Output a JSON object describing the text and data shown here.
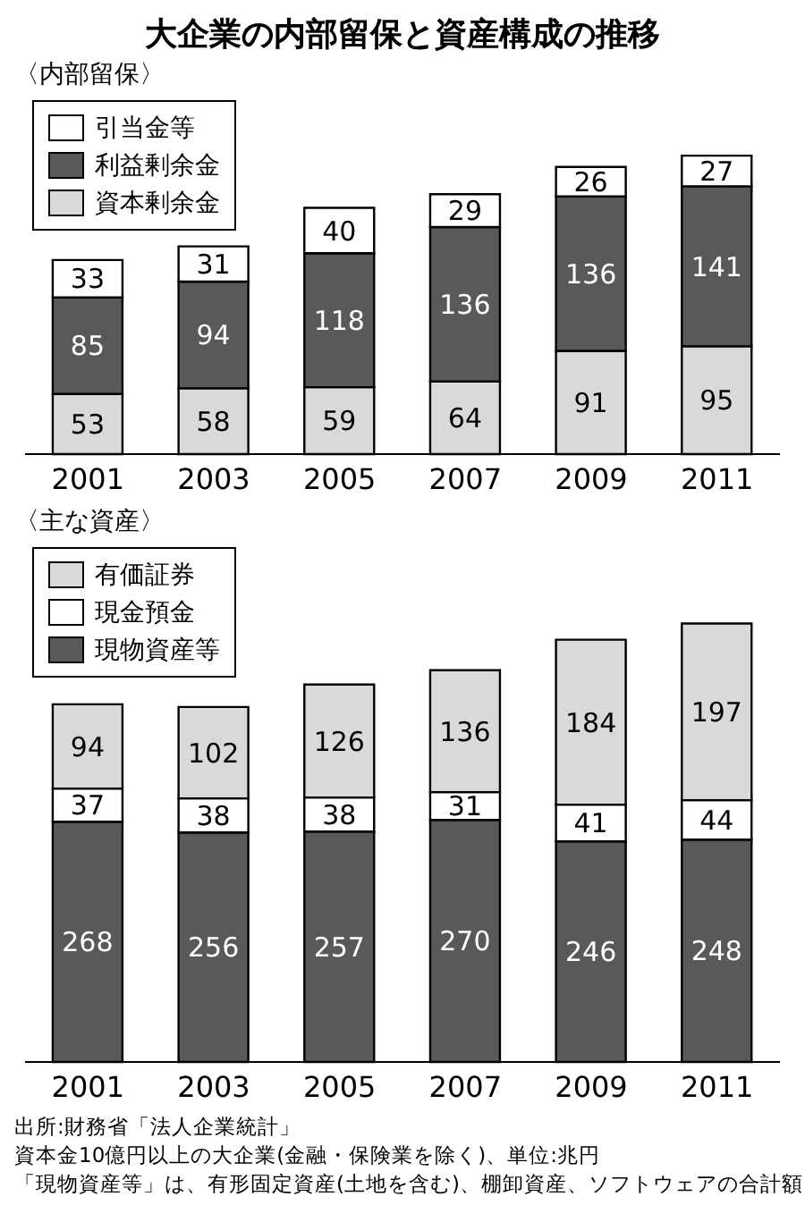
{
  "chart_data": [
    {
      "type": "bar",
      "title": "大企業の内部留保と資産構成の推移",
      "subtitle": "〈内部留保〉",
      "categories": [
        "2001",
        "2003",
        "2005",
        "2007",
        "2009",
        "2011"
      ],
      "stacked": true,
      "data_labels": true,
      "legend": "top left",
      "series": [
        {
          "name": "資本剰余金",
          "color": "#d9d9d9",
          "values": [
            53,
            58,
            59,
            64,
            91,
            95
          ]
        },
        {
          "name": "利益剰余金",
          "color": "#595959",
          "values": [
            85,
            94,
            118,
            136,
            136,
            141
          ]
        },
        {
          "name": "引当金等",
          "color": "#ffffff",
          "values": [
            33,
            31,
            40,
            29,
            26,
            27
          ]
        }
      ]
    },
    {
      "type": "bar",
      "subtitle": "〈主な資産〉",
      "categories": [
        "2001",
        "2003",
        "2005",
        "2007",
        "2009",
        "2011"
      ],
      "stacked": true,
      "data_labels": true,
      "legend": "top left",
      "series": [
        {
          "name": "現物資産等",
          "color": "#595959",
          "values": [
            268,
            256,
            257,
            270,
            246,
            248
          ]
        },
        {
          "name": "現金預金",
          "color": "#ffffff",
          "values": [
            37,
            38,
            38,
            31,
            41,
            44
          ]
        },
        {
          "name": "有価証券",
          "color": "#d9d9d9",
          "values": [
            94,
            102,
            126,
            136,
            184,
            197
          ]
        }
      ],
      "annotations": [
        "出所:財務省「法人企業統計」",
        "資本金10億円以上の大企業(金融・保険業を除く)、単位:兆円",
        "「現物資産等」は、有形固定資産(土地を含む)、棚卸資産、ソフトウェアの合計額"
      ]
    }
  ]
}
